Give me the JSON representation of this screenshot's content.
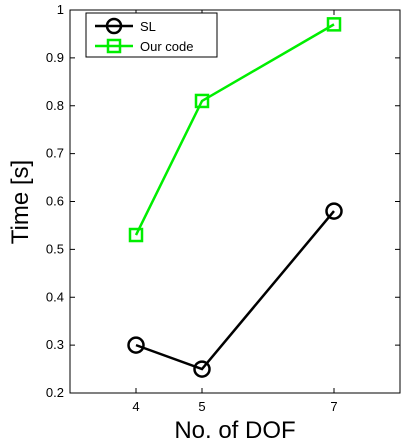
{
  "chart_data": {
    "type": "line",
    "title": "",
    "xlabel": "No. of DOF",
    "ylabel": "Time [s]",
    "xlim": [
      3,
      8
    ],
    "ylim": [
      0.2,
      1
    ],
    "xticks": [
      "4",
      "5",
      "7"
    ],
    "yticks": [
      "0.2",
      "0.3",
      "0.4",
      "0.5",
      "0.6",
      "0.7",
      "0.8",
      "0.9",
      "1"
    ],
    "grid": false,
    "legend_position": "top-left",
    "x": [
      4,
      5,
      7
    ],
    "series": [
      {
        "name": "SL",
        "values": [
          0.3,
          0.25,
          0.58
        ],
        "color": "#000000",
        "marker": "circle"
      },
      {
        "name": "Our code",
        "values": [
          0.53,
          0.81,
          0.97
        ],
        "color": "#00ee00",
        "marker": "square"
      }
    ]
  }
}
